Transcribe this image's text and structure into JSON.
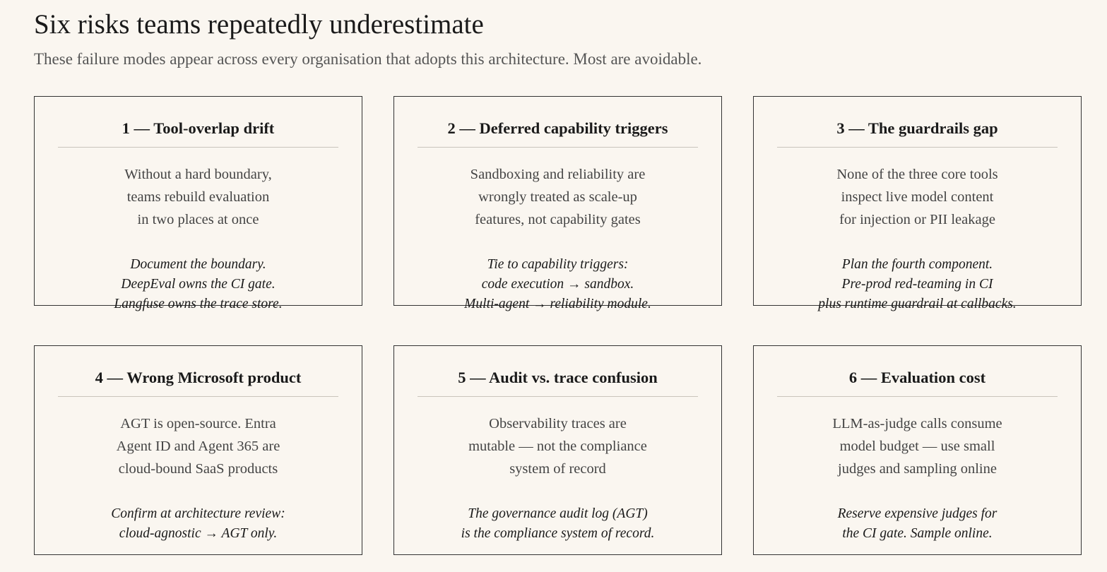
{
  "header": {
    "title": "Six risks teams repeatedly underestimate",
    "subtitle": "These failure modes appear across every organisation that adopts this architecture. Most are avoidable."
  },
  "cards": [
    {
      "title": "1 — Tool-overlap drift",
      "body": [
        "Without a hard boundary,",
        "teams rebuild evaluation",
        "in two places at once"
      ],
      "mitigation": [
        "Document the boundary.",
        "DeepEval owns the CI gate.",
        "Langfuse owns the trace store."
      ]
    },
    {
      "title": "2 — Deferred capability triggers",
      "body": [
        "Sandboxing and reliability are",
        "wrongly treated as scale-up",
        "features, not capability gates"
      ],
      "mitigation": [
        "Tie to capability triggers:",
        "code execution → sandbox.",
        "Multi-agent → reliability module."
      ]
    },
    {
      "title": "3 — The guardrails gap",
      "body": [
        "None of the three core tools",
        "inspect live model content",
        "for injection or PII leakage"
      ],
      "mitigation": [
        "Plan the fourth component.",
        "Pre-prod red-teaming in CI",
        "plus runtime guardrail at callbacks."
      ]
    },
    {
      "title": "4 — Wrong Microsoft product",
      "body": [
        "AGT is open-source. Entra",
        "Agent ID and Agent 365 are",
        "cloud-bound SaaS products"
      ],
      "mitigation": [
        "Confirm at architecture review:",
        "cloud-agnostic → AGT only."
      ]
    },
    {
      "title": "5 — Audit vs. trace confusion",
      "body": [
        "Observability traces are",
        "mutable — not the compliance",
        "system of record"
      ],
      "mitigation": [
        "The governance audit log (AGT)",
        "is the compliance system of record."
      ]
    },
    {
      "title": "6 — Evaluation cost",
      "body": [
        "LLM-as-judge calls consume",
        "model budget — use small",
        "judges and sampling online"
      ],
      "mitigation": [
        "Reserve expensive judges for",
        "the CI gate. Sample online."
      ]
    }
  ]
}
